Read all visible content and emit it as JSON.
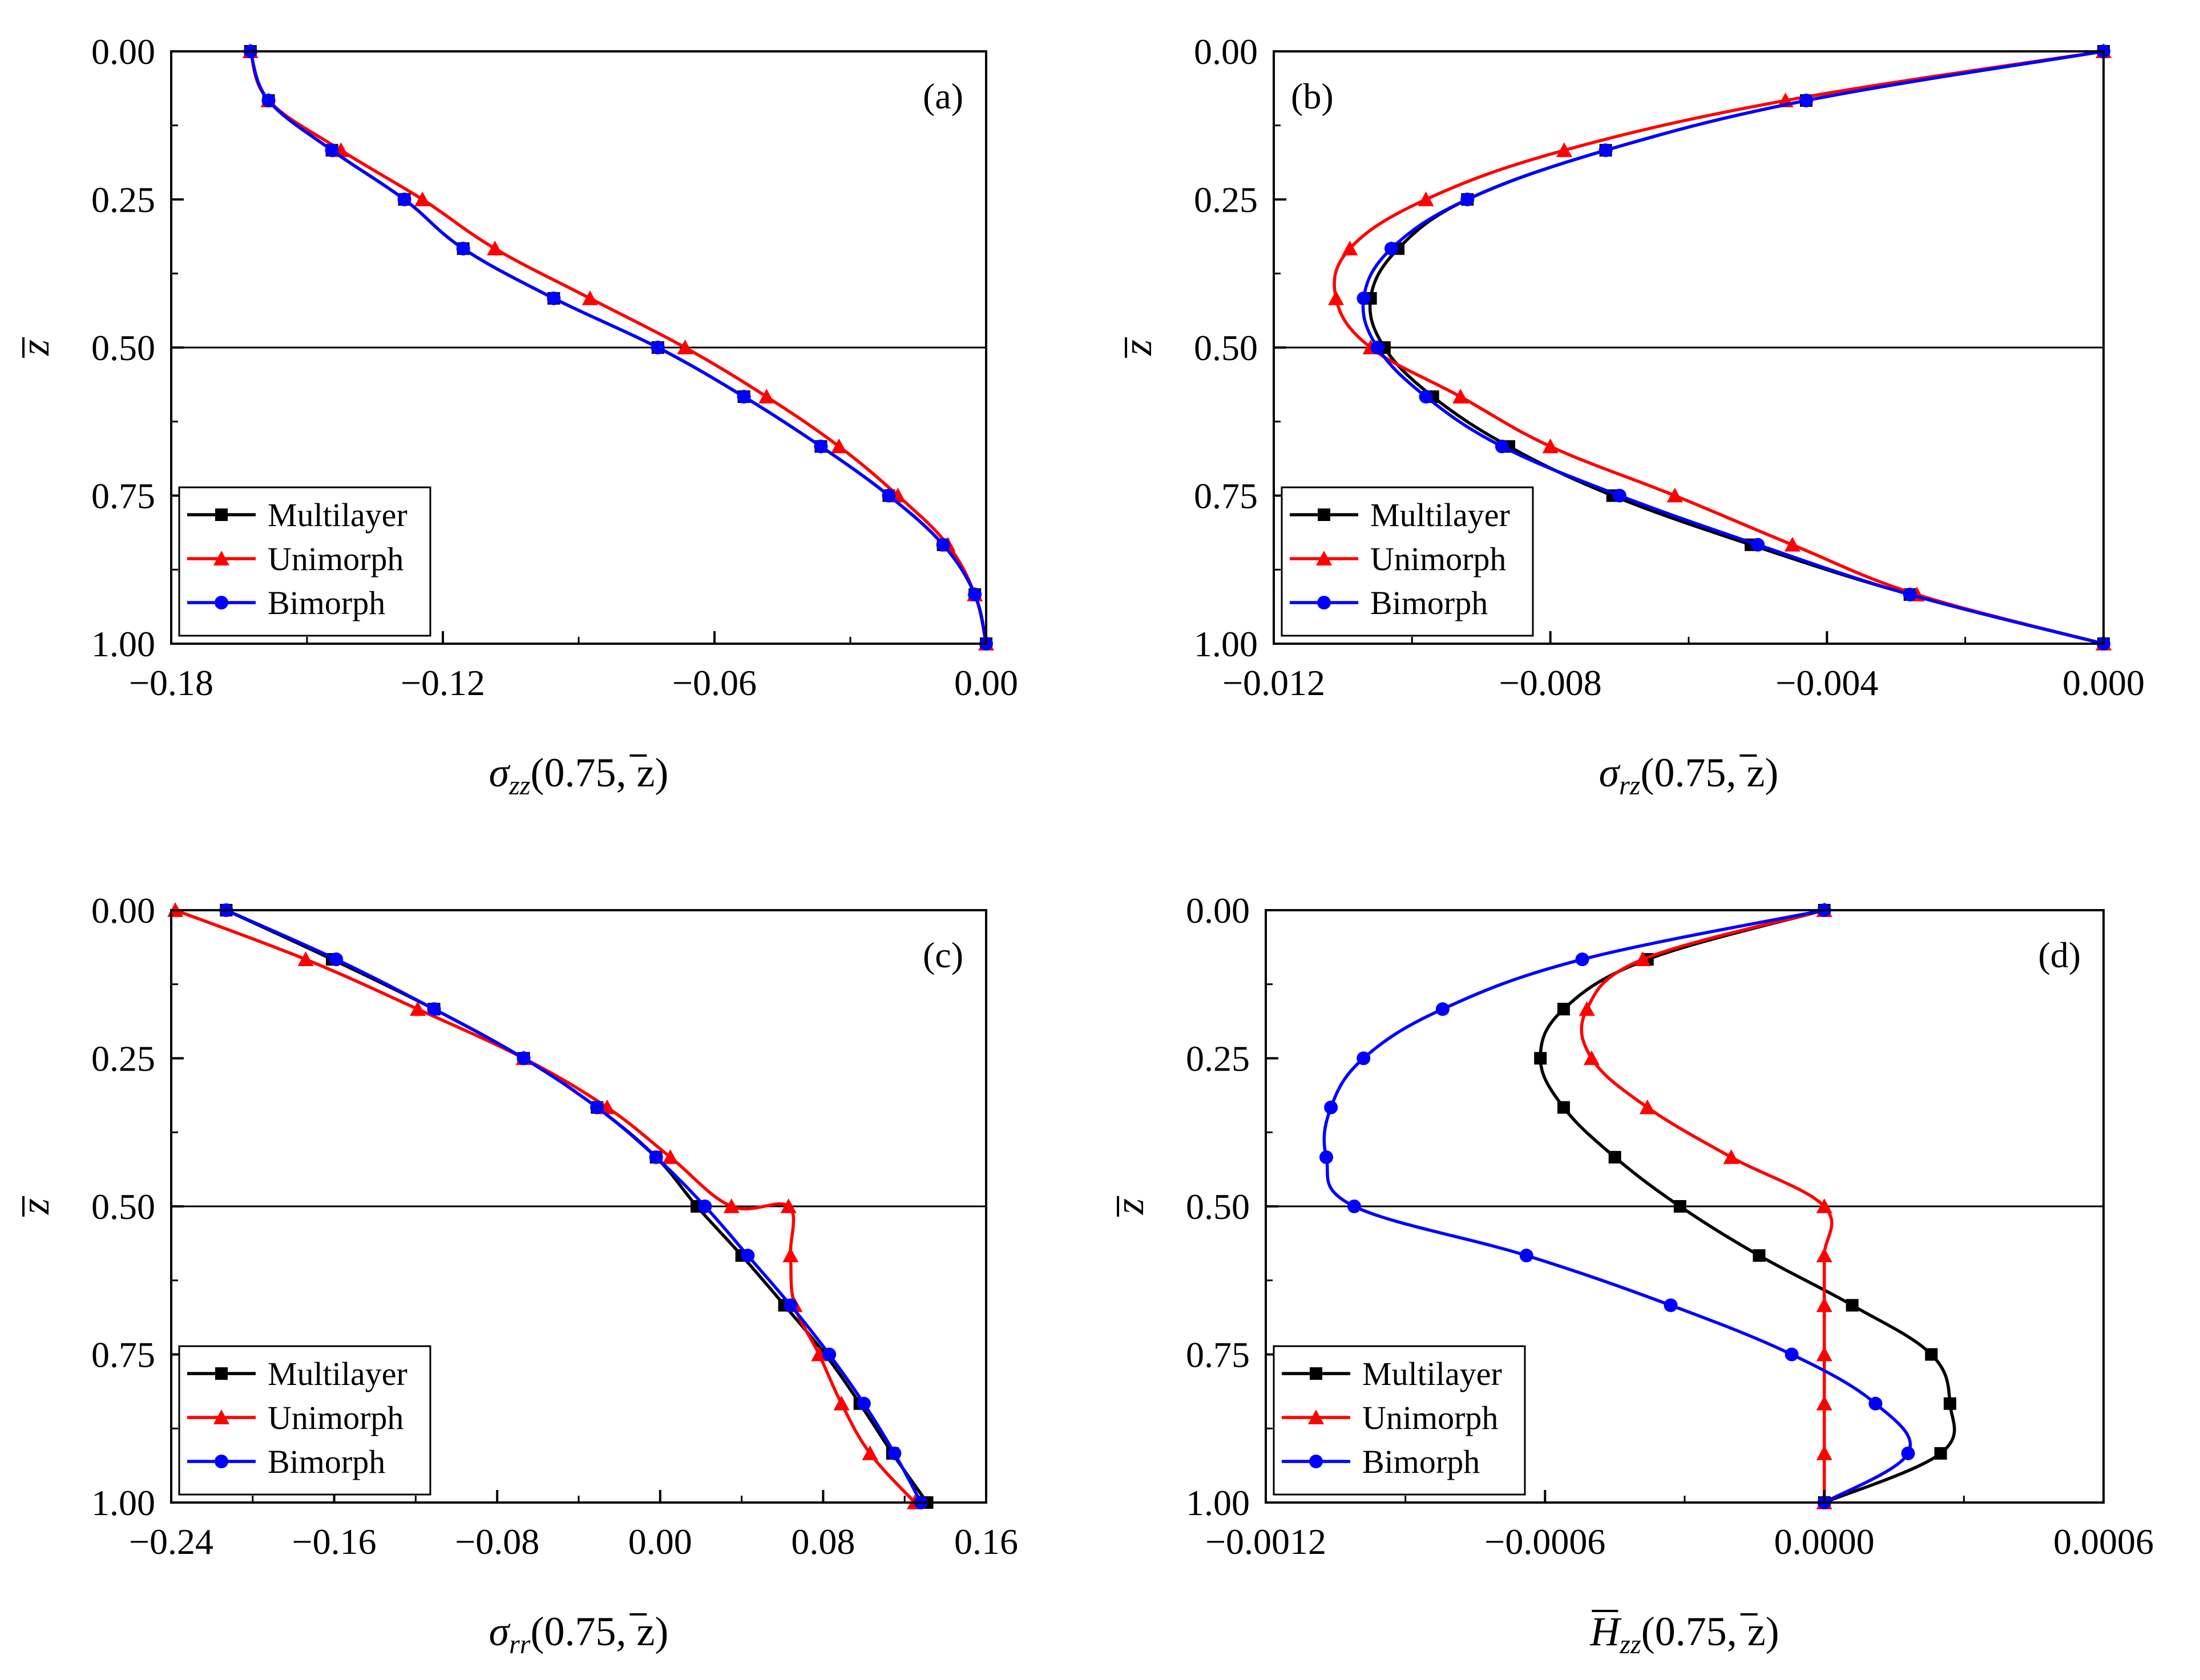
{
  "figure": {
    "panel_labels": [
      "(a)",
      "(b)",
      "(c)",
      "(d)"
    ]
  },
  "colors": {
    "Multilayer": "#000000",
    "Unimorph": "#ff0000",
    "Bimorph": "#0000ff"
  },
  "legend": [
    "Multilayer",
    "Unimorph",
    "Bimorph"
  ],
  "chart_data": [
    {
      "type": "line",
      "panel": "(a)",
      "xlabel_symbol": "σ",
      "xlabel_sub": "zz",
      "xlabel_arg": "(0.75, z)",
      "ylabel": "z",
      "xlim": [
        -0.18,
        0.0
      ],
      "ylim": [
        0.0,
        1.0
      ],
      "xticks": [
        -0.18,
        -0.12,
        -0.06,
        0.0
      ],
      "xtick_labels": [
        "−0.18",
        "−0.12",
        "−0.06",
        "0.00"
      ],
      "yticks": [
        0.0,
        0.25,
        0.5,
        0.75,
        1.0
      ],
      "ytick_labels": [
        "0.00",
        "0.25",
        "0.50",
        "0.75",
        "1.00"
      ],
      "hline": 0.5,
      "series": [
        {
          "name": "Multilayer",
          "marker": "square",
          "x": [
            -0.1625,
            -0.1585,
            -0.1445,
            -0.1285,
            -0.1155,
            -0.0955,
            -0.0725,
            -0.0535,
            -0.0365,
            -0.0215,
            -0.0095,
            -0.0025,
            0.0
          ],
          "y": [
            0.0,
            0.083,
            0.167,
            0.25,
            0.333,
            0.417,
            0.5,
            0.583,
            0.667,
            0.75,
            0.833,
            0.917,
            1.0
          ]
        },
        {
          "name": "Unimorph",
          "marker": "triangle",
          "x": [
            -0.1625,
            -0.1585,
            -0.1425,
            -0.1245,
            -0.1085,
            -0.0875,
            -0.0665,
            -0.0485,
            -0.0325,
            -0.0195,
            -0.0085,
            -0.0025,
            0.0
          ],
          "y": [
            0.0,
            0.083,
            0.167,
            0.25,
            0.333,
            0.417,
            0.5,
            0.583,
            0.667,
            0.75,
            0.833,
            0.917,
            1.0
          ]
        },
        {
          "name": "Bimorph",
          "marker": "circle",
          "x": [
            -0.1625,
            -0.1585,
            -0.1445,
            -0.1285,
            -0.1155,
            -0.0955,
            -0.0725,
            -0.0535,
            -0.0365,
            -0.0215,
            -0.0095,
            -0.0025,
            0.0
          ],
          "y": [
            0.0,
            0.083,
            0.167,
            0.25,
            0.333,
            0.417,
            0.5,
            0.583,
            0.667,
            0.75,
            0.833,
            0.917,
            1.0
          ]
        }
      ]
    },
    {
      "type": "line",
      "panel": "(b)",
      "xlabel_symbol": "σ",
      "xlabel_sub": "rz",
      "xlabel_arg": "(0.75, z)",
      "ylabel": "z",
      "xlim": [
        -0.012,
        0.0
      ],
      "ylim": [
        0.0,
        1.0
      ],
      "xticks": [
        -0.012,
        -0.008,
        -0.004,
        0.0
      ],
      "xtick_labels": [
        "−0.012",
        "−0.008",
        "−0.004",
        "0.000"
      ],
      "yticks": [
        0.0,
        0.25,
        0.5,
        0.75,
        1.0
      ],
      "ytick_labels": [
        "0.00",
        "0.25",
        "0.50",
        "0.75",
        "1.00"
      ],
      "hline": 0.5,
      "series": [
        {
          "name": "Multilayer",
          "marker": "square",
          "x": [
            0.0,
            -0.0043,
            -0.0072,
            -0.0092,
            -0.0102,
            -0.0106,
            -0.0104,
            -0.0097,
            -0.0086,
            -0.0071,
            -0.0051,
            -0.0028,
            0.0
          ],
          "y": [
            0.0,
            0.083,
            0.167,
            0.25,
            0.333,
            0.417,
            0.5,
            0.583,
            0.667,
            0.75,
            0.833,
            0.917,
            1.0
          ]
        },
        {
          "name": "Unimorph",
          "marker": "triangle",
          "x": [
            0.0,
            -0.0046,
            -0.0078,
            -0.0098,
            -0.0109,
            -0.0111,
            -0.0106,
            -0.0093,
            -0.008,
            -0.0062,
            -0.0045,
            -0.0027,
            0.0
          ],
          "y": [
            0.0,
            0.083,
            0.167,
            0.25,
            0.333,
            0.417,
            0.5,
            0.583,
            0.667,
            0.75,
            0.833,
            0.917,
            1.0
          ]
        },
        {
          "name": "Bimorph",
          "marker": "circle",
          "x": [
            0.0,
            -0.0043,
            -0.0072,
            -0.0092,
            -0.0103,
            -0.0107,
            -0.0105,
            -0.0098,
            -0.0087,
            -0.007,
            -0.005,
            -0.0028,
            0.0
          ],
          "y": [
            0.0,
            0.083,
            0.167,
            0.25,
            0.333,
            0.417,
            0.5,
            0.583,
            0.667,
            0.75,
            0.833,
            0.917,
            1.0
          ]
        }
      ]
    },
    {
      "type": "line",
      "panel": "(c)",
      "xlabel_symbol": "σ",
      "xlabel_sub": "rr",
      "xlabel_arg": "(0.75, z)",
      "ylabel": "z",
      "xlim": [
        -0.24,
        0.16
      ],
      "ylim": [
        0.0,
        1.0
      ],
      "xticks": [
        -0.24,
        -0.16,
        -0.08,
        0.0,
        0.08,
        0.16
      ],
      "xtick_labels": [
        "−0.24",
        "−0.16",
        "−0.08",
        "0.00",
        "0.08",
        "0.16"
      ],
      "yticks": [
        0.0,
        0.25,
        0.5,
        0.75,
        1.0
      ],
      "ytick_labels": [
        "0.00",
        "0.25",
        "0.50",
        "0.75",
        "1.00"
      ],
      "hline": 0.5,
      "series": [
        {
          "name": "Multilayer",
          "marker": "square",
          "x": [
            -0.213,
            -0.161,
            -0.111,
            -0.067,
            -0.031,
            -0.002,
            0.018,
            0.04,
            0.061,
            0.081,
            0.098,
            0.114,
            0.131
          ],
          "y": [
            0.0,
            0.083,
            0.167,
            0.25,
            0.333,
            0.417,
            0.5,
            0.583,
            0.667,
            0.75,
            0.833,
            0.917,
            1.0
          ]
        },
        {
          "name": "Unimorph",
          "marker": "triangle",
          "x": [
            -0.238,
            -0.174,
            -0.119,
            -0.067,
            -0.026,
            0.005,
            0.035,
            0.063,
            0.064,
            0.066,
            0.078,
            0.089,
            0.103,
            0.125
          ],
          "y": [
            0.0,
            0.083,
            0.167,
            0.25,
            0.333,
            0.417,
            0.5,
            0.5,
            0.583,
            0.667,
            0.75,
            0.833,
            0.917,
            1.0
          ]
        },
        {
          "name": "Bimorph",
          "marker": "circle",
          "x": [
            -0.213,
            -0.159,
            -0.111,
            -0.067,
            -0.031,
            -0.002,
            0.022,
            0.043,
            0.064,
            0.083,
            0.1,
            0.115,
            0.128
          ],
          "y": [
            0.0,
            0.083,
            0.167,
            0.25,
            0.333,
            0.417,
            0.5,
            0.583,
            0.667,
            0.75,
            0.833,
            0.917,
            1.0
          ]
        }
      ]
    },
    {
      "type": "line",
      "panel": "(d)",
      "xlabel_symbol": "H",
      "xlabel_sub": "zz",
      "xlabel_arg": "(0.75, z)",
      "ylabel": "z",
      "xlim": [
        -0.0012,
        0.0006
      ],
      "ylim": [
        0.0,
        1.0
      ],
      "xticks": [
        -0.0012,
        -0.0006,
        0.0,
        0.0006
      ],
      "xtick_labels": [
        "−0.0012",
        "−0.0006",
        "0.0000",
        "0.0006"
      ],
      "yticks": [
        0.0,
        0.25,
        0.5,
        0.75,
        1.0
      ],
      "ytick_labels": [
        "0.00",
        "0.25",
        "0.50",
        "0.75",
        "1.00"
      ],
      "hline": 0.5,
      "series": [
        {
          "name": "Multilayer",
          "marker": "square",
          "x": [
            0.0,
            -0.00038,
            -0.00056,
            -0.00061,
            -0.00056,
            -0.00045,
            -0.00031,
            -0.00014,
            6e-05,
            0.00023,
            0.00027,
            0.00025,
            0.0
          ],
          "y": [
            0.0,
            0.083,
            0.167,
            0.25,
            0.333,
            0.417,
            0.5,
            0.583,
            0.667,
            0.75,
            0.833,
            0.917,
            1.0
          ]
        },
        {
          "name": "Unimorph",
          "marker": "triangle",
          "x": [
            0.0,
            -0.00039,
            -0.00051,
            -0.0005,
            -0.00038,
            -0.0002,
            0.0,
            0.0,
            0.0,
            0.0,
            0.0,
            0.0,
            0.0
          ],
          "y": [
            0.0,
            0.083,
            0.167,
            0.25,
            0.333,
            0.417,
            0.5,
            0.583,
            0.667,
            0.75,
            0.833,
            0.917,
            1.0
          ]
        },
        {
          "name": "Bimorph",
          "marker": "circle",
          "x": [
            0.0,
            -0.00052,
            -0.00082,
            -0.00099,
            -0.00106,
            -0.00107,
            -0.00101,
            -0.00064,
            -0.00033,
            -7e-05,
            0.00011,
            0.00018,
            0.0
          ],
          "y": [
            0.0,
            0.083,
            0.167,
            0.25,
            0.333,
            0.417,
            0.5,
            0.583,
            0.667,
            0.75,
            0.833,
            0.917,
            1.0
          ]
        }
      ]
    }
  ]
}
